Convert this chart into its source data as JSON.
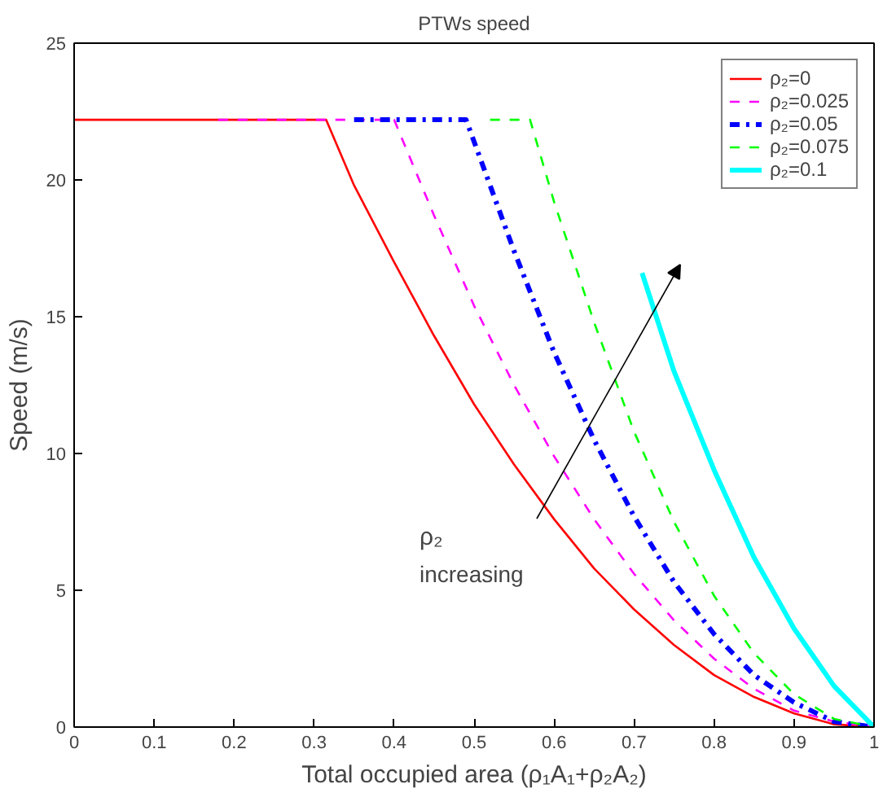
{
  "chart_data": {
    "type": "line",
    "title": "PTWs speed",
    "xlabel": "Total occupied area (ρ₁A₁+ρ₂A₂)",
    "ylabel": "Speed (m/s)",
    "xlim": [
      0,
      1
    ],
    "ylim": [
      0,
      25
    ],
    "xticks": [
      0,
      0.1,
      0.2,
      0.3,
      0.4,
      0.5,
      0.6,
      0.7,
      0.8,
      0.9,
      1
    ],
    "yticks": [
      0,
      5,
      10,
      15,
      20,
      25
    ],
    "grid": false,
    "legend": "top right",
    "marker": "none",
    "series": [
      {
        "name": "ρ₂=0",
        "color": "#ff0000",
        "line_style": "solid",
        "x": [
          0,
          0.315,
          0.35,
          0.4,
          0.45,
          0.5,
          0.55,
          0.6,
          0.65,
          0.7,
          0.75,
          0.8,
          0.85,
          0.9,
          0.95,
          1
        ],
        "values": [
          22.2,
          22.2,
          19.8,
          17.0,
          14.3,
          11.8,
          9.6,
          7.6,
          5.8,
          4.3,
          3.0,
          1.9,
          1.1,
          0.5,
          0.1,
          0
        ]
      },
      {
        "name": "ρ₂=0.025",
        "color": "#ff00ff",
        "line_style": "dashed",
        "x": [
          0.18,
          0.4,
          0.45,
          0.5,
          0.55,
          0.6,
          0.65,
          0.7,
          0.75,
          0.8,
          0.85,
          0.9,
          0.95,
          1
        ],
        "values": [
          22.2,
          22.2,
          18.7,
          15.4,
          12.5,
          9.9,
          7.6,
          5.6,
          3.9,
          2.5,
          1.4,
          0.6,
          0.2,
          0
        ]
      },
      {
        "name": "ρ₂=0.05",
        "color": "#0000ff",
        "line_style": "dashdot",
        "x": [
          0.35,
          0.49,
          0.55,
          0.6,
          0.65,
          0.7,
          0.75,
          0.8,
          0.85,
          0.9,
          0.95,
          1
        ],
        "values": [
          22.2,
          22.2,
          17.4,
          13.7,
          10.5,
          7.7,
          5.3,
          3.4,
          1.9,
          0.9,
          0.2,
          0
        ]
      },
      {
        "name": "ρ₂=0.075",
        "color": "#00ff00",
        "line_style": "dashed",
        "x": [
          0.52,
          0.57,
          0.6,
          0.65,
          0.7,
          0.75,
          0.8,
          0.85,
          0.9,
          0.95,
          1
        ],
        "values": [
          22.2,
          22.2,
          19.2,
          14.8,
          10.8,
          7.5,
          4.8,
          2.7,
          1.2,
          0.3,
          0
        ]
      },
      {
        "name": "ρ₂=0.1",
        "color": "#00ffff",
        "line_style": "solid",
        "x": [
          0.71,
          0.75,
          0.8,
          0.85,
          0.9,
          0.95,
          1
        ],
        "values": [
          16.6,
          13.0,
          9.4,
          6.2,
          3.6,
          1.5,
          0
        ]
      }
    ],
    "annotations": [
      "ρ₂ increasing"
    ]
  }
}
